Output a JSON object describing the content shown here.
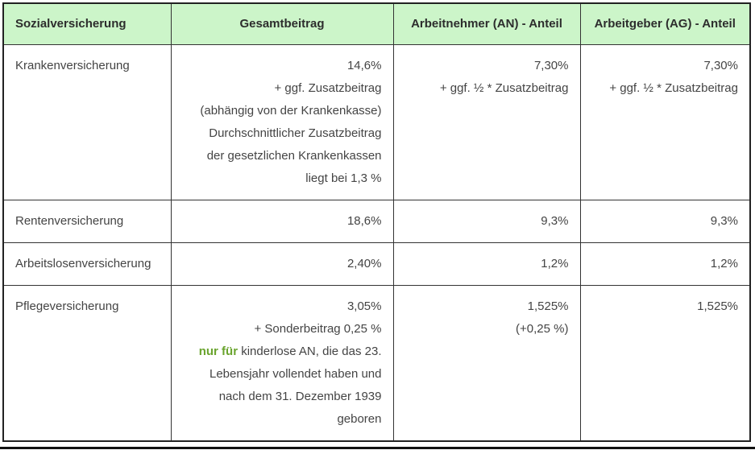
{
  "colors": {
    "header_bg": "#ccf5c9",
    "border_inner": "#333333",
    "border_outer": "#222222",
    "text_main": "#444444",
    "text_header": "#2d2d2d",
    "highlight_green": "#6aa42e"
  },
  "table": {
    "headers": [
      {
        "label": "Sozialversicherung",
        "align": "left"
      },
      {
        "label": "Gesamtbeitrag",
        "align": "center"
      },
      {
        "label": "Arbeitnehmer (AN) - Anteil",
        "align": "center"
      },
      {
        "label": "Arbeitgeber (AG) - Anteil",
        "align": "center"
      }
    ],
    "rows": [
      {
        "insurance": "Krankenversicherung",
        "gesamtbeitrag": [
          "14,6%",
          "+ ggf. Zusatzbeitrag",
          "(abhängig von der Krankenkasse)",
          "Durchschnittlicher Zusatzbeitrag",
          "der gesetzlichen Krankenkassen",
          "liegt bei 1,3 %"
        ],
        "arbeitnehmer": [
          "7,30%",
          "+ ggf. ½ * Zusatzbeitrag"
        ],
        "arbeitgeber": [
          "7,30%",
          "+ ggf. ½ * Zusatzbeitrag"
        ]
      },
      {
        "insurance": "Rentenversicherung",
        "gesamtbeitrag": [
          "18,6%"
        ],
        "arbeitnehmer": [
          "9,3%"
        ],
        "arbeitgeber": [
          "9,3%"
        ]
      },
      {
        "insurance": "Arbeitslosenversicherung",
        "gesamtbeitrag": [
          "2,40%"
        ],
        "arbeitnehmer": [
          "1,2%"
        ],
        "arbeitgeber": [
          "1,2%"
        ]
      },
      {
        "insurance": "Pflegeversicherung",
        "gesamtbeitrag": [
          "3,05%",
          "+ Sonderbeitrag 0,25 %",
          [
            {
              "text": "nur für",
              "highlight": true
            },
            {
              "text": " kinderlose AN, die das 23.",
              "highlight": false
            }
          ],
          "Lebensjahr vollendet haben und",
          "nach dem 31. Dezember 1939",
          "geboren"
        ],
        "arbeitnehmer": [
          "1,525%",
          "(+0,25 %)"
        ],
        "arbeitgeber": [
          "1,525%"
        ]
      }
    ]
  }
}
